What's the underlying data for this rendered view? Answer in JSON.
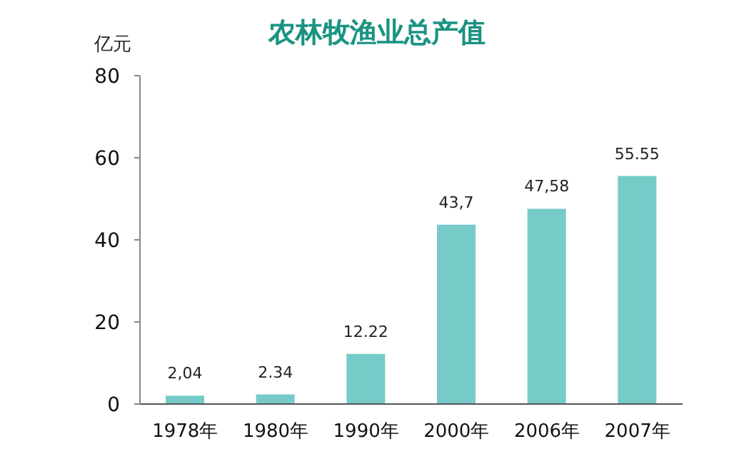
{
  "chart_data": {
    "type": "bar",
    "title": "农林牧渔业总产值",
    "ylabel": "亿元",
    "categories": [
      "1978年",
      "1980年",
      "1990年",
      "2000年",
      "2006年",
      "2007年"
    ],
    "values": [
      2.04,
      2.34,
      12.22,
      43.7,
      47.58,
      55.55
    ],
    "value_labels": [
      "2,04",
      "2.34",
      "12.22",
      "43,7",
      "47,58",
      "55.55"
    ],
    "color": "#76cbc9",
    "ylim": [
      0,
      80
    ],
    "yticks": [
      0,
      20,
      40,
      60,
      80
    ],
    "grid": false,
    "legend": false
  }
}
